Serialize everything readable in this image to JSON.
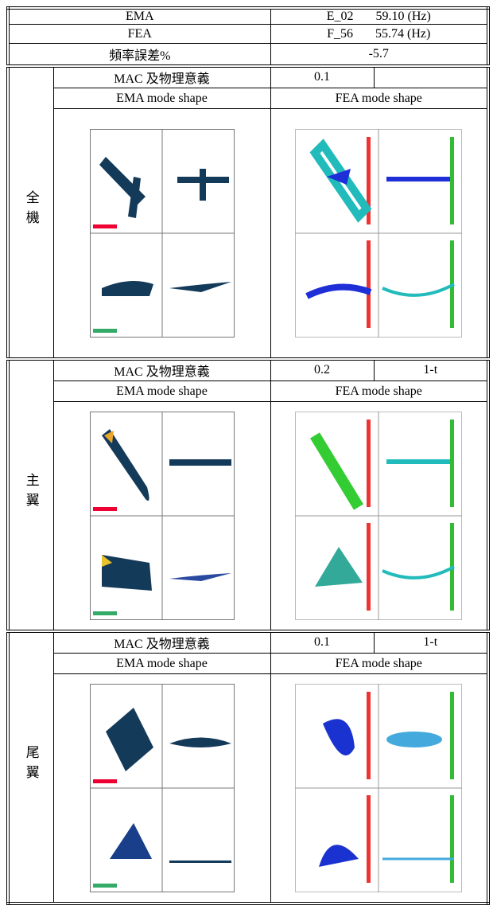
{
  "header": {
    "rows": [
      {
        "label": "EMA",
        "mode": "E_02",
        "freq": "59.10 (Hz)"
      },
      {
        "label": "FEA",
        "mode": "F_56",
        "freq": "55.74 (Hz)"
      },
      {
        "label": "頻率誤差%",
        "value": "-5.7"
      }
    ]
  },
  "sections": [
    {
      "label": "全機",
      "mac_label": "MAC 及物理意義",
      "mac_value": "0.1",
      "ema_heading": "EMA mode shape",
      "fea_heading": "FEA mode shape"
    },
    {
      "label": "主翼",
      "mac_label": "MAC 及物理意義",
      "mac_value": "0.2",
      "meaning": "1-t",
      "ema_heading": "EMA mode shape",
      "fea_heading": "FEA mode shape"
    },
    {
      "label": "尾翼",
      "mac_label": "MAC 及物理意義",
      "mac_value": "0.1",
      "meaning": "1-t",
      "ema_heading": "EMA mode shape",
      "fea_heading": "FEA mode shape"
    }
  ]
}
